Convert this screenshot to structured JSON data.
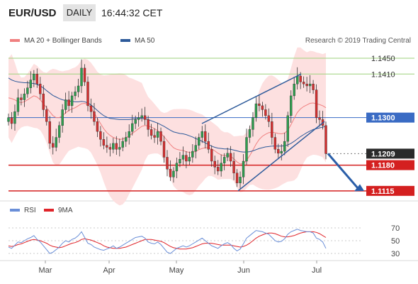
{
  "header": {
    "symbol": "EUR/USD",
    "timeframe": "DAILY",
    "time": "16:44:32 CET"
  },
  "legend": {
    "bollinger_label": "MA 20 + Bollinger Bands",
    "ma50_label": "MA 50",
    "rsi_label": "RSI",
    "rsi_ma_label": "9MA",
    "credit": "Research © 2019 Trading Central"
  },
  "colors": {
    "bollinger": "#f08080",
    "band_fill": "#fde0e0",
    "ma50": "#2d5a9a",
    "up": "#2e9e4f",
    "down": "#d62f2f",
    "green_level": "#9ed27c",
    "red_level": "#d42020",
    "blue_level": "#3a6bc4",
    "rsi": "#6a8fd8",
    "rsi_ma": "#e0242a",
    "arrow": "#2a5ea8"
  },
  "chart_data": [
    {
      "type": "candlestick",
      "price_range": [
        1.1095,
        1.1475
      ],
      "x_labels": [
        "Mar",
        "Apr",
        "May",
        "Jun",
        "Jul"
      ],
      "levels": [
        {
          "value": 1.145,
          "label": "1.1450",
          "kind": "resistance"
        },
        {
          "value": 1.141,
          "label": "1.1410",
          "kind": "resistance"
        },
        {
          "value": 1.13,
          "label": "1.1300",
          "kind": "pivot"
        },
        {
          "value": 1.1209,
          "label": "1.1209",
          "kind": "last"
        },
        {
          "value": 1.118,
          "label": "1.1180",
          "kind": "support"
        },
        {
          "value": 1.1115,
          "label": "1.1115",
          "kind": "support"
        }
      ],
      "close_series": [
        1.13,
        1.1285,
        1.1315,
        1.135,
        1.1345,
        1.136,
        1.1375,
        1.1395,
        1.141,
        1.1385,
        1.136,
        1.132,
        1.129,
        1.1235,
        1.1225,
        1.125,
        1.128,
        1.132,
        1.1345,
        1.133,
        1.1355,
        1.1365,
        1.138,
        1.1425,
        1.139,
        1.133,
        1.1315,
        1.129,
        1.1265,
        1.1245,
        1.123,
        1.1225,
        1.122,
        1.1235,
        1.122,
        1.1225,
        1.124,
        1.125,
        1.1265,
        1.1285,
        1.1295,
        1.13,
        1.1305,
        1.1295,
        1.127,
        1.1255,
        1.125,
        1.1265,
        1.124,
        1.12,
        1.117,
        1.115,
        1.1165,
        1.1185,
        1.1195,
        1.1205,
        1.119,
        1.12,
        1.1215,
        1.123,
        1.125,
        1.1265,
        1.124,
        1.122,
        1.119,
        1.1175,
        1.1165,
        1.1185,
        1.12,
        1.121,
        1.119,
        1.116,
        1.1135,
        1.115,
        1.119,
        1.125,
        1.127,
        1.13,
        1.1335,
        1.133,
        1.132,
        1.1305,
        1.129,
        1.125,
        1.122,
        1.121,
        1.1215,
        1.124,
        1.1305,
        1.1355,
        1.1385,
        1.1405,
        1.139,
        1.1385,
        1.138,
        1.1385,
        1.137,
        1.13,
        1.1295,
        1.128,
        1.1209
      ],
      "ma20_series": [
        1.135,
        1.1348,
        1.1345,
        1.134,
        1.1338,
        1.134,
        1.1345,
        1.135,
        1.1355,
        1.1352,
        1.1345,
        1.1335,
        1.1325,
        1.1315,
        1.1305,
        1.13,
        1.13,
        1.1305,
        1.1312,
        1.1318,
        1.1322,
        1.1325,
        1.133,
        1.1335,
        1.1336,
        1.1333,
        1.1325,
        1.1312,
        1.1298,
        1.1285,
        1.1272,
        1.1262,
        1.1255,
        1.125,
        1.1247,
        1.1245,
        1.1246,
        1.1249,
        1.1254,
        1.126,
        1.1266,
        1.1272,
        1.1278,
        1.128,
        1.1279,
        1.1276,
        1.1272,
        1.1267,
        1.126,
        1.1252,
        1.1242,
        1.1232,
        1.1224,
        1.122,
        1.1218,
        1.1217,
        1.1214,
        1.1212,
        1.1212,
        1.1215,
        1.1219,
        1.1222,
        1.1224,
        1.1224,
        1.1221,
        1.1216,
        1.121,
        1.1206,
        1.1204,
        1.1204,
        1.1202,
        1.1196,
        1.1188,
        1.1183,
        1.1184,
        1.1192,
        1.1204,
        1.1218,
        1.1233,
        1.1245,
        1.1253,
        1.1258,
        1.1262,
        1.1263,
        1.1262,
        1.126,
        1.1259,
        1.1261,
        1.1268,
        1.1282,
        1.1298,
        1.1313,
        1.1322,
        1.1328,
        1.1332,
        1.1336,
        1.1337,
        1.1335,
        1.1333,
        1.133,
        1.1325
      ],
      "ma50_series": [
        1.14,
        1.1395,
        1.1392,
        1.139,
        1.1389,
        1.1388,
        1.1388,
        1.1387,
        1.1386,
        1.1384,
        1.138,
        1.1375,
        1.1368,
        1.1362,
        1.1356,
        1.1352,
        1.1348,
        1.1345,
        1.1343,
        1.1342,
        1.1341,
        1.134,
        1.134,
        1.1341,
        1.134,
        1.1337,
        1.1332,
        1.1325,
        1.1318,
        1.1311,
        1.1305,
        1.1301,
        1.1298,
        1.1297,
        1.1296,
        1.1295,
        1.1295,
        1.1295,
        1.1295,
        1.1296,
        1.1297,
        1.1298,
        1.1298,
        1.1297,
        1.1295,
        1.1292,
        1.1289,
        1.1286,
        1.1282,
        1.1278,
        1.1273,
        1.1268,
        1.1264,
        1.1262,
        1.126,
        1.1259,
        1.1257,
        1.1254,
        1.1251,
        1.1247,
        1.1244,
        1.124,
        1.1236,
        1.1232,
        1.1228,
        1.1225,
        1.1223,
        1.1222,
        1.1221,
        1.1221,
        1.122,
        1.1218,
        1.1216,
        1.1214,
        1.1213,
        1.1213,
        1.1214,
        1.1216,
        1.1219,
        1.1222,
        1.1224,
        1.1226,
        1.1227,
        1.1228,
        1.1228,
        1.1228,
        1.1228,
        1.1229,
        1.1231,
        1.1235,
        1.124,
        1.1246,
        1.1252,
        1.1257,
        1.1262,
        1.1266,
        1.127,
        1.1272,
        1.1274,
        1.1276,
        1.1278
      ],
      "channel_upper": [
        [
          1.1285,
          1.129
        ],
        [
          1.141,
          1.141
        ]
      ],
      "channel_lower": [
        [
          1.1115,
          1.1105
        ],
        [
          1.129,
          1.129
        ]
      ]
    },
    {
      "type": "line",
      "y_ticks": [
        70,
        50,
        30
      ],
      "y_range": [
        20,
        80
      ],
      "rsi_series": [
        40,
        38,
        43,
        48,
        47,
        50,
        53,
        55,
        58,
        52,
        48,
        42,
        36,
        30,
        32,
        36,
        40,
        46,
        50,
        48,
        52,
        54,
        58,
        64,
        55,
        46,
        44,
        40,
        38,
        36,
        35,
        37,
        39,
        42,
        38,
        40,
        43,
        46,
        49,
        52,
        55,
        56,
        57,
        54,
        48,
        46,
        45,
        48,
        44,
        38,
        32,
        30,
        34,
        38,
        40,
        42,
        40,
        42,
        45,
        48,
        51,
        54,
        50,
        46,
        42,
        40,
        38,
        42,
        45,
        47,
        44,
        38,
        34,
        37,
        45,
        54,
        58,
        62,
        66,
        65,
        64,
        62,
        60,
        55,
        50,
        48,
        49,
        53,
        60,
        64,
        66,
        68,
        66,
        65,
        64,
        64,
        62,
        54,
        52,
        48,
        38
      ],
      "rsi_ma_series": [
        42,
        41,
        42,
        44,
        45,
        47,
        49,
        51,
        52,
        51,
        50,
        48,
        46,
        43,
        41,
        40,
        39,
        40,
        42,
        44,
        46,
        47,
        49,
        52,
        53,
        52,
        51,
        49,
        47,
        45,
        42,
        40,
        39,
        38,
        38,
        38,
        39,
        40,
        42,
        44,
        46,
        48,
        50,
        52,
        52,
        52,
        51,
        50,
        49,
        47,
        44,
        41,
        39,
        38,
        37,
        37,
        37,
        38,
        39,
        41,
        43,
        45,
        46,
        46,
        46,
        45,
        44,
        43,
        43,
        43,
        43,
        42,
        41,
        40,
        41,
        43,
        46,
        50,
        54,
        57,
        59,
        61,
        62,
        62,
        61,
        59,
        57,
        56,
        56,
        57,
        58,
        60,
        62,
        63,
        64,
        64,
        64,
        63,
        61,
        58,
        55
      ]
    }
  ]
}
